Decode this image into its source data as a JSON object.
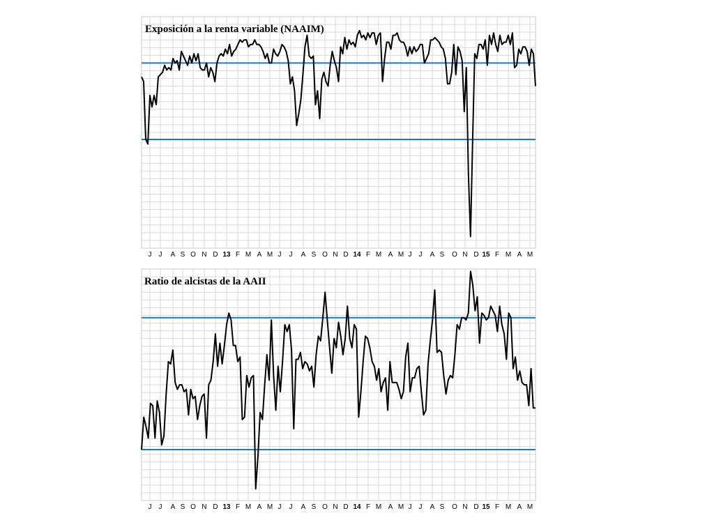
{
  "chart_data": [
    {
      "type": "line",
      "title": "Exposición a la renta variable (NAAIM)",
      "x_ticks": [
        "J",
        "J",
        "A",
        "S",
        "O",
        "N",
        "D",
        "13",
        "F",
        "M",
        "A",
        "M",
        "J",
        "J",
        "A",
        "S",
        "O",
        "N",
        "D",
        "14",
        "F",
        "M",
        "A",
        "M",
        "J",
        "J",
        "A",
        "S",
        "O",
        "N",
        "D",
        "15",
        "F",
        "M",
        "A",
        "M"
      ],
      "year_ticks": [
        "13",
        "14",
        "15"
      ],
      "ylim": [
        0,
        100
      ],
      "reference_lines": [
        80,
        47
      ],
      "grid": true,
      "series": [
        {
          "color": "#000000",
          "values": [
            74,
            72,
            47,
            45,
            66,
            61,
            66,
            62,
            74,
            75,
            76,
            79,
            77,
            78,
            77,
            82,
            80,
            81,
            77,
            85,
            83,
            81,
            79,
            83,
            80,
            84,
            81,
            84,
            78,
            77,
            77,
            80,
            74,
            78,
            76,
            72,
            80,
            83,
            84,
            83,
            86,
            84,
            88,
            83,
            85,
            86,
            88,
            90,
            89,
            90,
            90,
            87,
            88,
            88,
            90,
            88,
            88,
            87,
            85,
            82,
            84,
            80,
            80,
            86,
            84,
            83,
            85,
            88,
            87,
            85,
            81,
            71,
            74,
            68,
            53,
            58,
            64,
            75,
            87,
            92,
            83,
            82,
            83,
            62,
            68,
            56,
            73,
            76,
            72,
            70,
            79,
            85,
            81,
            78,
            72,
            87,
            84,
            91,
            86,
            90,
            88,
            89,
            87,
            92,
            94,
            91,
            92,
            90,
            93,
            91,
            93,
            93,
            88,
            92,
            93,
            72,
            82,
            89,
            89,
            86,
            92,
            92,
            93,
            90,
            89,
            89,
            87,
            83,
            87,
            84,
            87,
            85,
            86,
            88,
            88,
            80,
            82,
            84,
            90,
            90,
            91,
            90,
            89,
            87,
            86,
            82,
            71,
            71,
            76,
            88,
            75,
            87,
            85,
            81,
            59,
            78,
            32,
            5,
            46,
            84,
            82,
            88,
            88,
            86,
            90,
            79,
            92,
            88,
            93,
            88,
            85,
            92,
            88,
            89,
            89,
            92,
            88,
            93,
            78,
            79,
            86,
            84,
            87,
            87,
            85,
            79,
            86,
            84,
            70
          ]
        }
      ]
    },
    {
      "type": "line",
      "title": "Ratio de alcistas de la AAII",
      "x_ticks": [
        "J",
        "J",
        "A",
        "S",
        "O",
        "N",
        "D",
        "13",
        "F",
        "M",
        "A",
        "M",
        "J",
        "J",
        "A",
        "S",
        "O",
        "N",
        "D",
        "14",
        "F",
        "M",
        "A",
        "M",
        "J",
        "J",
        "A",
        "S",
        "O",
        "N",
        "D",
        "15",
        "F",
        "M",
        "A",
        "M"
      ],
      "year_ticks": [
        "13",
        "14",
        "15"
      ],
      "ylim": [
        0,
        100
      ],
      "reference_lines": [
        79,
        22
      ],
      "grid": true,
      "series": [
        {
          "color": "#000000",
          "values": [
            22,
            36,
            32,
            27,
            42,
            41,
            27,
            43,
            38,
            24,
            28,
            46,
            60,
            59,
            65,
            51,
            48,
            50,
            50,
            47,
            48,
            37,
            48,
            44,
            45,
            35,
            41,
            45,
            46,
            27,
            50,
            52,
            60,
            72,
            58,
            68,
            59,
            67,
            76,
            81,
            78,
            67,
            67,
            60,
            62,
            35,
            36,
            54,
            49,
            53,
            54,
            5,
            19,
            38,
            35,
            50,
            63,
            52,
            78,
            54,
            39,
            58,
            47,
            60,
            76,
            73,
            76,
            65,
            31,
            61,
            61,
            64,
            57,
            60,
            59,
            56,
            58,
            49,
            63,
            71,
            69,
            79,
            90,
            78,
            66,
            55,
            70,
            66,
            77,
            71,
            63,
            70,
            84,
            70,
            66,
            76,
            74,
            36,
            47,
            60,
            71,
            70,
            66,
            60,
            58,
            52,
            57,
            47,
            51,
            53,
            39,
            60,
            51,
            51,
            51,
            48,
            44,
            47,
            62,
            68,
            47,
            53,
            53,
            57,
            58,
            47,
            37,
            39,
            59,
            69,
            78,
            91,
            64,
            65,
            64,
            54,
            46,
            52,
            54,
            53,
            63,
            76,
            74,
            79,
            79,
            78,
            81,
            99,
            93,
            82,
            88,
            68,
            81,
            80,
            78,
            79,
            84,
            82,
            80,
            73,
            84,
            76,
            72,
            61,
            81,
            79,
            57,
            62,
            52,
            56,
            51,
            50,
            50,
            41,
            57,
            40,
            40
          ]
        }
      ]
    }
  ]
}
